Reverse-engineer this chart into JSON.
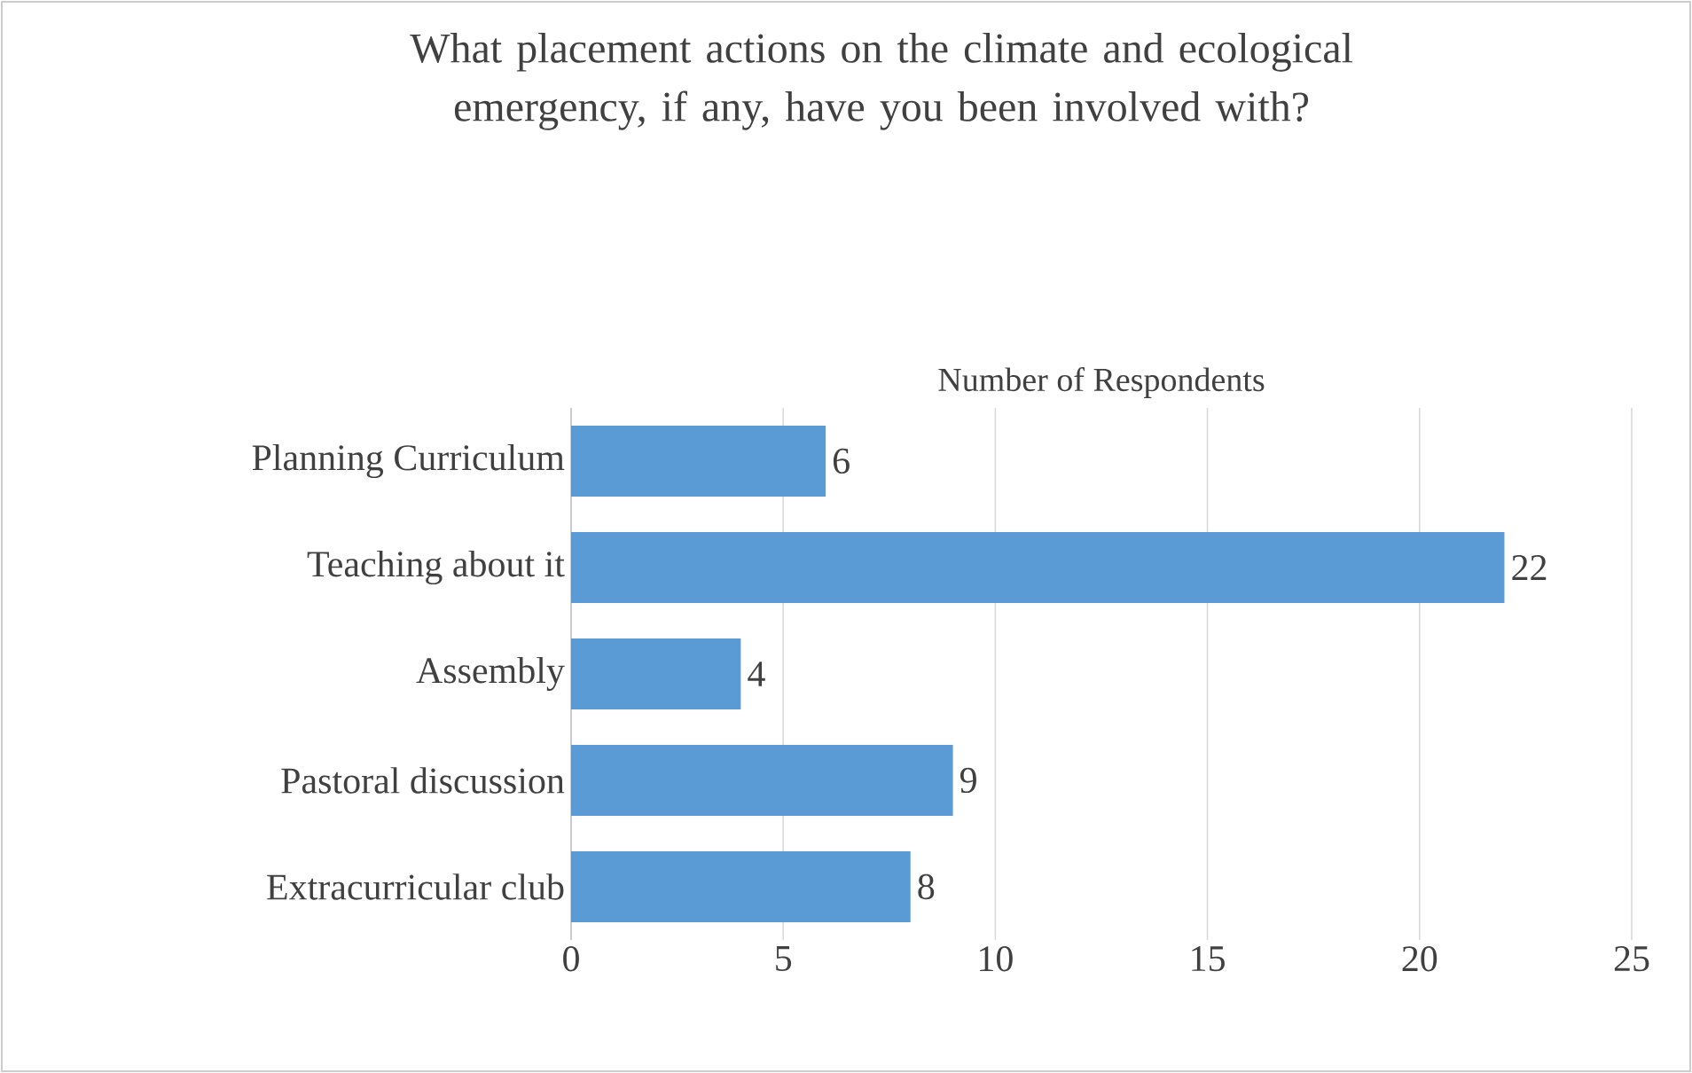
{
  "chart_data": {
    "type": "bar",
    "orientation": "horizontal",
    "title": "What placement actions on the climate and ecological emergency, if any, have you been involved with?",
    "xlabel": "Number of Respondents",
    "categories": [
      "Planning Curriculum",
      "Teaching about it",
      "Assembly",
      "Pastoral discussion",
      "Extracurricular club"
    ],
    "values": [
      6,
      22,
      4,
      9,
      8
    ],
    "color": "#5b9bd5",
    "xlim": [
      0,
      25
    ],
    "xticks": [
      0,
      5,
      10,
      15,
      20,
      25
    ],
    "grid": "x",
    "data_labels": true
  }
}
